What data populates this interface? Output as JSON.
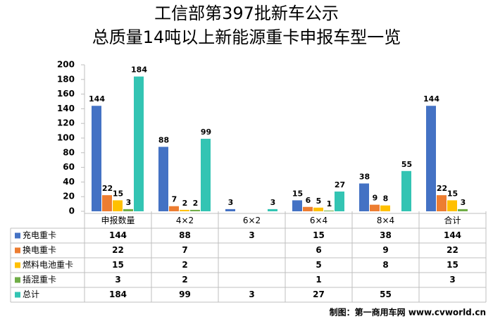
{
  "chart_data": {
    "type": "bar",
    "title": "工信部第397批新车公示",
    "subtitle": "总质量14吨以上新能源重卡申报车型一览",
    "categories": [
      "申报数量",
      "4×2",
      "6×2",
      "6×4",
      "8×4",
      "合计"
    ],
    "series": [
      {
        "name": "充电重卡",
        "color": "#4472c4",
        "values": [
          144,
          88,
          3,
          15,
          38,
          144
        ]
      },
      {
        "name": "换电重卡",
        "color": "#ed7d31",
        "values": [
          22,
          7,
          null,
          6,
          9,
          22
        ]
      },
      {
        "name": "燃料电池重卡",
        "color": "#ffc000",
        "values": [
          15,
          2,
          null,
          5,
          8,
          15
        ]
      },
      {
        "name": "插混重卡",
        "color": "#70ad47",
        "values": [
          3,
          2,
          null,
          1,
          null,
          3
        ]
      },
      {
        "name": "总计",
        "color": "#33c4b3",
        "values": [
          184,
          99,
          3,
          27,
          55,
          null
        ]
      }
    ],
    "ylim": [
      0,
      200
    ],
    "yticks": [
      0,
      20,
      40,
      60,
      80,
      100,
      120,
      140,
      160,
      180,
      200
    ],
    "grid": false,
    "footer": "制图：第一商用车网 www.cvworld.cn"
  }
}
